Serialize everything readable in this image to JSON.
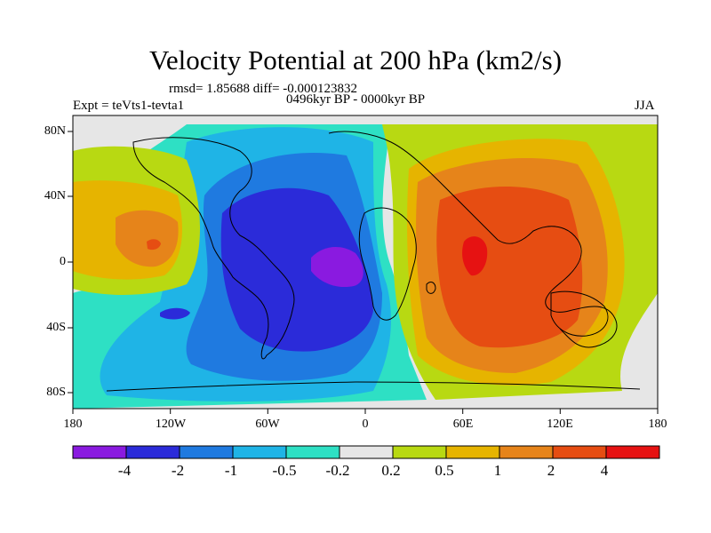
{
  "title": "Velocity Potential at 200 hPa (km2/s)",
  "stats": "rmsd= 1.85688  diff= -0.000123832",
  "left_label": "Expt = teVts1-tevta1",
  "center_label": "0496kyr BP - 0000kyr BP",
  "right_label": "JJA",
  "axes": {
    "x_ticks": [
      "180",
      "120W",
      "60W",
      "0",
      "60E",
      "120E",
      "180"
    ],
    "y_ticks": [
      "80N",
      "40N",
      "0",
      "40S",
      "80S"
    ]
  },
  "colorbar": {
    "labels": [
      "-4",
      "-2",
      "-1",
      "-0.5",
      "-0.2",
      "0.2",
      "0.5",
      "1",
      "2",
      "4"
    ],
    "colors": [
      "#8a1ae0",
      "#2b2bd9",
      "#1f7ae0",
      "#1fb4e6",
      "#2ee0c4",
      "#e6e6e6",
      "#b8d912",
      "#e6b400",
      "#e6841a",
      "#e64d12",
      "#e61212"
    ]
  }
}
